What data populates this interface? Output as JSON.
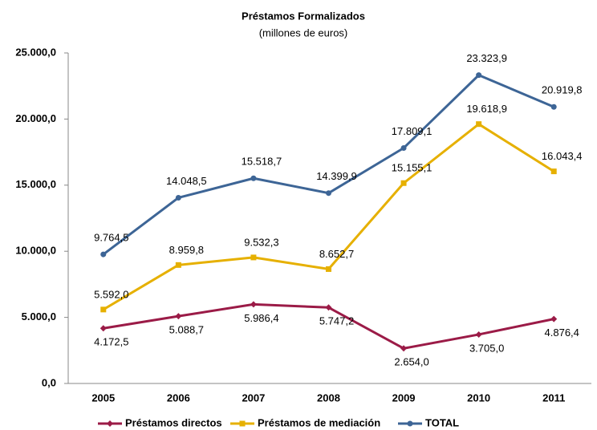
{
  "chart_data": {
    "type": "line",
    "title": "Préstamos Formalizados",
    "subtitle": "(millones de euros)",
    "categories": [
      "2005",
      "2006",
      "2007",
      "2008",
      "2009",
      "2010",
      "2011"
    ],
    "series": [
      {
        "name": "Préstamos directos",
        "color": "#9b1b47",
        "marker": "diamond",
        "values": [
          4172.5,
          5088.7,
          5986.4,
          5747.2,
          2654.0,
          3705.0,
          4876.4
        ],
        "value_labels": [
          "4.172,5",
          "5.088,7",
          "5.986,4",
          "5.747,2",
          "2.654,0",
          "3.705,0",
          "4.876,4"
        ]
      },
      {
        "name": "Préstamos de mediación",
        "color": "#e6b000",
        "marker": "square",
        "values": [
          5592.0,
          8959.8,
          9532.3,
          8652.7,
          15155.1,
          19618.9,
          16043.4
        ],
        "value_labels": [
          "5.592,0",
          "8.959,8",
          "9.532,3",
          "8.652,7",
          "15.155,1",
          "19.618,9",
          "16.043,4"
        ]
      },
      {
        "name": "TOTAL",
        "color": "#3d6596",
        "marker": "circle",
        "values": [
          9764.5,
          14048.5,
          15518.7,
          14399.9,
          17809.1,
          23323.9,
          20919.8
        ],
        "value_labels": [
          "9.764,5",
          "14.048,5",
          "15.518,7",
          "14.399,9",
          "17.809,1",
          "23.323,9",
          "20.919,8"
        ]
      }
    ],
    "ylim": [
      0,
      25000
    ],
    "yticks": [
      {
        "value": 0,
        "label": "0,0"
      },
      {
        "value": 5000,
        "label": "5.000,0"
      },
      {
        "value": 10000,
        "label": "10.000,0"
      },
      {
        "value": 15000,
        "label": "15.000,0"
      },
      {
        "value": 20000,
        "label": "20.000,0"
      },
      {
        "value": 25000,
        "label": "25.000,0"
      }
    ],
    "legend": "bottom"
  }
}
